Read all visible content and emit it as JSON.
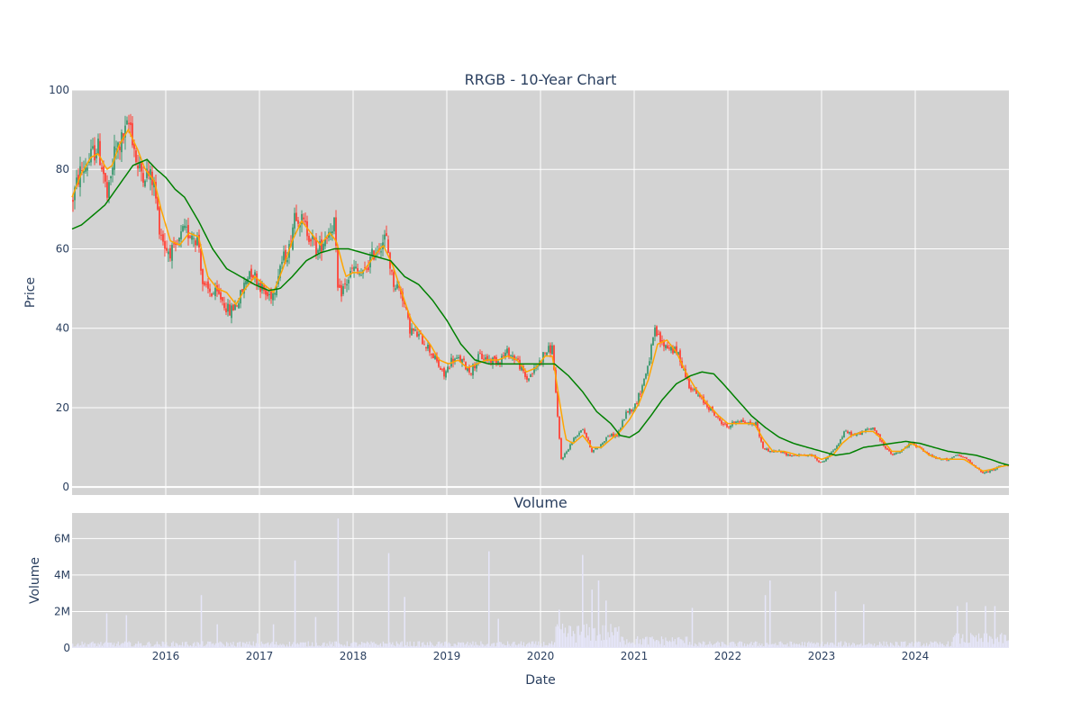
{
  "colors": {
    "background": "#d3d3d3",
    "grid": "#ffffff",
    "up": "#3d9970",
    "down": "#ff4136",
    "ma_short": "orange",
    "ma_long": "green",
    "volume": "#e6e6fa",
    "text": "#2a3f5f"
  },
  "chart_data": [
    {
      "type": "candlestick",
      "title": "RRGB - 10-Year Chart",
      "xlabel": "",
      "ylabel": "Price",
      "xlim": [
        2015.0,
        2025.0
      ],
      "ylim": [
        -2,
        100
      ],
      "yticks": [
        0,
        20,
        40,
        60,
        80,
        100
      ],
      "grid": true,
      "price_anchors": [
        [
          2015.0,
          72
        ],
        [
          2015.08,
          79
        ],
        [
          2015.18,
          82
        ],
        [
          2015.27,
          86
        ],
        [
          2015.33,
          80
        ],
        [
          2015.38,
          72
        ],
        [
          2015.45,
          84
        ],
        [
          2015.55,
          88
        ],
        [
          2015.62,
          92
        ],
        [
          2015.7,
          80
        ],
        [
          2015.8,
          79
        ],
        [
          2015.87,
          77
        ],
        [
          2015.93,
          66
        ],
        [
          2016.0,
          60
        ],
        [
          2016.1,
          59
        ],
        [
          2016.18,
          64
        ],
        [
          2016.28,
          64
        ],
        [
          2016.35,
          62
        ],
        [
          2016.4,
          50
        ],
        [
          2016.48,
          49
        ],
        [
          2016.58,
          48
        ],
        [
          2016.68,
          44
        ],
        [
          2016.78,
          47
        ],
        [
          2016.9,
          55
        ],
        [
          2016.98,
          52
        ],
        [
          2017.08,
          48
        ],
        [
          2017.15,
          49
        ],
        [
          2017.22,
          56
        ],
        [
          2017.32,
          60
        ],
        [
          2017.38,
          70
        ],
        [
          2017.45,
          67
        ],
        [
          2017.55,
          63
        ],
        [
          2017.62,
          59
        ],
        [
          2017.7,
          63
        ],
        [
          2017.8,
          67
        ],
        [
          2017.84,
          48
        ],
        [
          2017.92,
          51
        ],
        [
          2018.0,
          55
        ],
        [
          2018.1,
          53
        ],
        [
          2018.22,
          59
        ],
        [
          2018.35,
          63
        ],
        [
          2018.42,
          52
        ],
        [
          2018.52,
          49
        ],
        [
          2018.6,
          40
        ],
        [
          2018.7,
          38
        ],
        [
          2018.78,
          36
        ],
        [
          2018.88,
          32
        ],
        [
          2018.97,
          28
        ],
        [
          2019.05,
          32
        ],
        [
          2019.15,
          32
        ],
        [
          2019.25,
          29
        ],
        [
          2019.35,
          33
        ],
        [
          2019.45,
          32
        ],
        [
          2019.55,
          32
        ],
        [
          2019.65,
          34
        ],
        [
          2019.75,
          32
        ],
        [
          2019.85,
          27
        ],
        [
          2019.95,
          30
        ],
        [
          2020.05,
          34
        ],
        [
          2020.13,
          35
        ],
        [
          2020.18,
          18
        ],
        [
          2020.22,
          7
        ],
        [
          2020.28,
          9
        ],
        [
          2020.35,
          12
        ],
        [
          2020.45,
          15
        ],
        [
          2020.55,
          9
        ],
        [
          2020.62,
          10
        ],
        [
          2020.72,
          13
        ],
        [
          2020.82,
          13
        ],
        [
          2020.92,
          19
        ],
        [
          2021.0,
          20
        ],
        [
          2021.08,
          25
        ],
        [
          2021.15,
          31
        ],
        [
          2021.22,
          39
        ],
        [
          2021.3,
          36
        ],
        [
          2021.4,
          35
        ],
        [
          2021.48,
          33
        ],
        [
          2021.58,
          26
        ],
        [
          2021.68,
          23
        ],
        [
          2021.8,
          20
        ],
        [
          2021.9,
          17
        ],
        [
          2022.0,
          15
        ],
        [
          2022.1,
          17
        ],
        [
          2022.22,
          16
        ],
        [
          2022.3,
          16
        ],
        [
          2022.37,
          10
        ],
        [
          2022.45,
          9
        ],
        [
          2022.55,
          9
        ],
        [
          2022.65,
          8
        ],
        [
          2022.8,
          8
        ],
        [
          2022.9,
          8
        ],
        [
          2023.0,
          6
        ],
        [
          2023.08,
          8
        ],
        [
          2023.18,
          11
        ],
        [
          2023.25,
          14
        ],
        [
          2023.35,
          13
        ],
        [
          2023.45,
          14
        ],
        [
          2023.55,
          15
        ],
        [
          2023.65,
          11
        ],
        [
          2023.75,
          8
        ],
        [
          2023.85,
          9
        ],
        [
          2023.95,
          11
        ],
        [
          2024.05,
          10
        ],
        [
          2024.15,
          8
        ],
        [
          2024.25,
          7
        ],
        [
          2024.35,
          7
        ],
        [
          2024.45,
          8
        ],
        [
          2024.55,
          7
        ],
        [
          2024.65,
          5
        ],
        [
          2024.72,
          3.5
        ],
        [
          2024.8,
          4
        ],
        [
          2024.88,
          5
        ],
        [
          2024.95,
          5.5
        ],
        [
          2025.0,
          5.5
        ]
      ],
      "ma_short_anchors": [
        [
          2015.0,
          73
        ],
        [
          2015.1,
          79
        ],
        [
          2015.2,
          83
        ],
        [
          2015.28,
          84
        ],
        [
          2015.37,
          80
        ],
        [
          2015.43,
          81
        ],
        [
          2015.5,
          86
        ],
        [
          2015.6,
          90
        ],
        [
          2015.7,
          85
        ],
        [
          2015.78,
          80
        ],
        [
          2015.88,
          77
        ],
        [
          2015.95,
          70
        ],
        [
          2016.05,
          62
        ],
        [
          2016.15,
          61
        ],
        [
          2016.25,
          64
        ],
        [
          2016.35,
          63
        ],
        [
          2016.45,
          53
        ],
        [
          2016.55,
          50
        ],
        [
          2016.65,
          49
        ],
        [
          2016.75,
          46
        ],
        [
          2016.85,
          50
        ],
        [
          2016.95,
          53
        ],
        [
          2017.05,
          51
        ],
        [
          2017.15,
          49
        ],
        [
          2017.25,
          55
        ],
        [
          2017.35,
          62
        ],
        [
          2017.45,
          67
        ],
        [
          2017.55,
          64
        ],
        [
          2017.65,
          61
        ],
        [
          2017.75,
          64
        ],
        [
          2017.82,
          62
        ],
        [
          2017.92,
          53
        ],
        [
          2018.0,
          54
        ],
        [
          2018.1,
          54
        ],
        [
          2018.22,
          58
        ],
        [
          2018.32,
          61
        ],
        [
          2018.42,
          56
        ],
        [
          2018.52,
          49
        ],
        [
          2018.62,
          42
        ],
        [
          2018.72,
          39
        ],
        [
          2018.82,
          36
        ],
        [
          2018.92,
          32
        ],
        [
          2019.02,
          31
        ],
        [
          2019.12,
          32
        ],
        [
          2019.22,
          30
        ],
        [
          2019.32,
          31
        ],
        [
          2019.42,
          32
        ],
        [
          2019.55,
          32
        ],
        [
          2019.65,
          33
        ],
        [
          2019.75,
          32
        ],
        [
          2019.85,
          29
        ],
        [
          2019.95,
          30
        ],
        [
          2020.05,
          33
        ],
        [
          2020.13,
          33
        ],
        [
          2020.2,
          22
        ],
        [
          2020.27,
          12
        ],
        [
          2020.35,
          11
        ],
        [
          2020.45,
          13
        ],
        [
          2020.55,
          10
        ],
        [
          2020.65,
          10
        ],
        [
          2020.75,
          12
        ],
        [
          2020.85,
          14
        ],
        [
          2020.95,
          17
        ],
        [
          2021.05,
          21
        ],
        [
          2021.15,
          27
        ],
        [
          2021.25,
          36
        ],
        [
          2021.35,
          37
        ],
        [
          2021.45,
          34
        ],
        [
          2021.55,
          29
        ],
        [
          2021.65,
          25
        ],
        [
          2021.78,
          21
        ],
        [
          2021.9,
          18
        ],
        [
          2022.0,
          16
        ],
        [
          2022.15,
          16
        ],
        [
          2022.28,
          16
        ],
        [
          2022.38,
          12
        ],
        [
          2022.48,
          9
        ],
        [
          2022.6,
          9
        ],
        [
          2022.75,
          8
        ],
        [
          2022.9,
          8
        ],
        [
          2023.0,
          7
        ],
        [
          2023.12,
          8
        ],
        [
          2023.22,
          11
        ],
        [
          2023.32,
          13
        ],
        [
          2023.45,
          14
        ],
        [
          2023.55,
          14
        ],
        [
          2023.65,
          12
        ],
        [
          2023.75,
          9
        ],
        [
          2023.85,
          9
        ],
        [
          2023.95,
          11
        ],
        [
          2024.05,
          10
        ],
        [
          2024.15,
          8
        ],
        [
          2024.28,
          7
        ],
        [
          2024.4,
          7
        ],
        [
          2024.52,
          7
        ],
        [
          2024.62,
          5.5
        ],
        [
          2024.72,
          4
        ],
        [
          2024.82,
          4.5
        ],
        [
          2024.92,
          5.2
        ],
        [
          2025.0,
          5.5
        ]
      ],
      "ma_long_anchors": [
        [
          2015.0,
          65
        ],
        [
          2015.1,
          66
        ],
        [
          2015.2,
          68
        ],
        [
          2015.35,
          71
        ],
        [
          2015.5,
          76
        ],
        [
          2015.65,
          81
        ],
        [
          2015.75,
          82
        ],
        [
          2015.8,
          82.5
        ],
        [
          2015.9,
          80
        ],
        [
          2016.0,
          78
        ],
        [
          2016.1,
          75
        ],
        [
          2016.2,
          73
        ],
        [
          2016.35,
          67
        ],
        [
          2016.5,
          60
        ],
        [
          2016.65,
          55
        ],
        [
          2016.8,
          53
        ],
        [
          2016.95,
          51
        ],
        [
          2017.1,
          49.5
        ],
        [
          2017.22,
          50
        ],
        [
          2017.35,
          53
        ],
        [
          2017.5,
          57
        ],
        [
          2017.65,
          59
        ],
        [
          2017.8,
          60
        ],
        [
          2017.95,
          60
        ],
        [
          2018.1,
          59
        ],
        [
          2018.25,
          58
        ],
        [
          2018.4,
          57
        ],
        [
          2018.55,
          53
        ],
        [
          2018.7,
          51
        ],
        [
          2018.85,
          47
        ],
        [
          2019.0,
          42
        ],
        [
          2019.15,
          36
        ],
        [
          2019.3,
          32
        ],
        [
          2019.45,
          31
        ],
        [
          2019.6,
          31
        ],
        [
          2019.75,
          31
        ],
        [
          2019.9,
          31
        ],
        [
          2020.05,
          31
        ],
        [
          2020.15,
          31
        ],
        [
          2020.3,
          28
        ],
        [
          2020.45,
          24
        ],
        [
          2020.6,
          19
        ],
        [
          2020.75,
          16
        ],
        [
          2020.85,
          13
        ],
        [
          2020.95,
          12.5
        ],
        [
          2021.05,
          14
        ],
        [
          2021.18,
          18
        ],
        [
          2021.3,
          22
        ],
        [
          2021.45,
          26
        ],
        [
          2021.6,
          28
        ],
        [
          2021.72,
          29
        ],
        [
          2021.85,
          28.5
        ],
        [
          2021.95,
          26
        ],
        [
          2022.1,
          22
        ],
        [
          2022.25,
          18
        ],
        [
          2022.4,
          15
        ],
        [
          2022.55,
          12.5
        ],
        [
          2022.7,
          11
        ],
        [
          2022.85,
          10
        ],
        [
          2023.0,
          9
        ],
        [
          2023.15,
          8
        ],
        [
          2023.3,
          8.5
        ],
        [
          2023.45,
          10
        ],
        [
          2023.6,
          10.5
        ],
        [
          2023.75,
          11
        ],
        [
          2023.9,
          11.5
        ],
        [
          2024.05,
          11
        ],
        [
          2024.2,
          10
        ],
        [
          2024.35,
          9
        ],
        [
          2024.5,
          8.5
        ],
        [
          2024.65,
          8
        ],
        [
          2024.8,
          7
        ],
        [
          2024.92,
          6
        ],
        [
          2025.0,
          5.5
        ]
      ]
    },
    {
      "type": "bar",
      "title": "Volume",
      "xlabel": "Date",
      "ylabel": "Volume",
      "xlim": [
        2015.0,
        2025.0
      ],
      "ylim": [
        0,
        7400000
      ],
      "yticks": [
        0,
        2000000,
        4000000,
        6000000
      ],
      "ytick_labels": [
        "0",
        "2M",
        "4M",
        "6M"
      ],
      "xticks": [
        2016,
        2017,
        2018,
        2019,
        2020,
        2021,
        2022,
        2023,
        2024
      ],
      "xtick_labels": [
        "2016",
        "2017",
        "2018",
        "2019",
        "2020",
        "2021",
        "2022",
        "2023",
        "2024"
      ],
      "spikes": [
        [
          2015.37,
          1900000
        ],
        [
          2015.58,
          1800000
        ],
        [
          2016.38,
          2900000
        ],
        [
          2016.55,
          1300000
        ],
        [
          2016.98,
          800000
        ],
        [
          2017.15,
          1300000
        ],
        [
          2017.38,
          4800000
        ],
        [
          2017.6,
          1700000
        ],
        [
          2017.84,
          7100000
        ],
        [
          2018.38,
          5200000
        ],
        [
          2018.55,
          2800000
        ],
        [
          2019.45,
          5300000
        ],
        [
          2019.55,
          1600000
        ],
        [
          2020.2,
          2100000
        ],
        [
          2020.45,
          5100000
        ],
        [
          2020.55,
          3200000
        ],
        [
          2020.62,
          3700000
        ],
        [
          2020.7,
          2600000
        ],
        [
          2021.62,
          2200000
        ],
        [
          2022.4,
          2900000
        ],
        [
          2022.45,
          3700000
        ],
        [
          2023.15,
          3100000
        ],
        [
          2023.45,
          2400000
        ],
        [
          2024.45,
          2300000
        ],
        [
          2024.55,
          2500000
        ],
        [
          2024.75,
          2300000
        ],
        [
          2024.85,
          2300000
        ]
      ]
    }
  ]
}
